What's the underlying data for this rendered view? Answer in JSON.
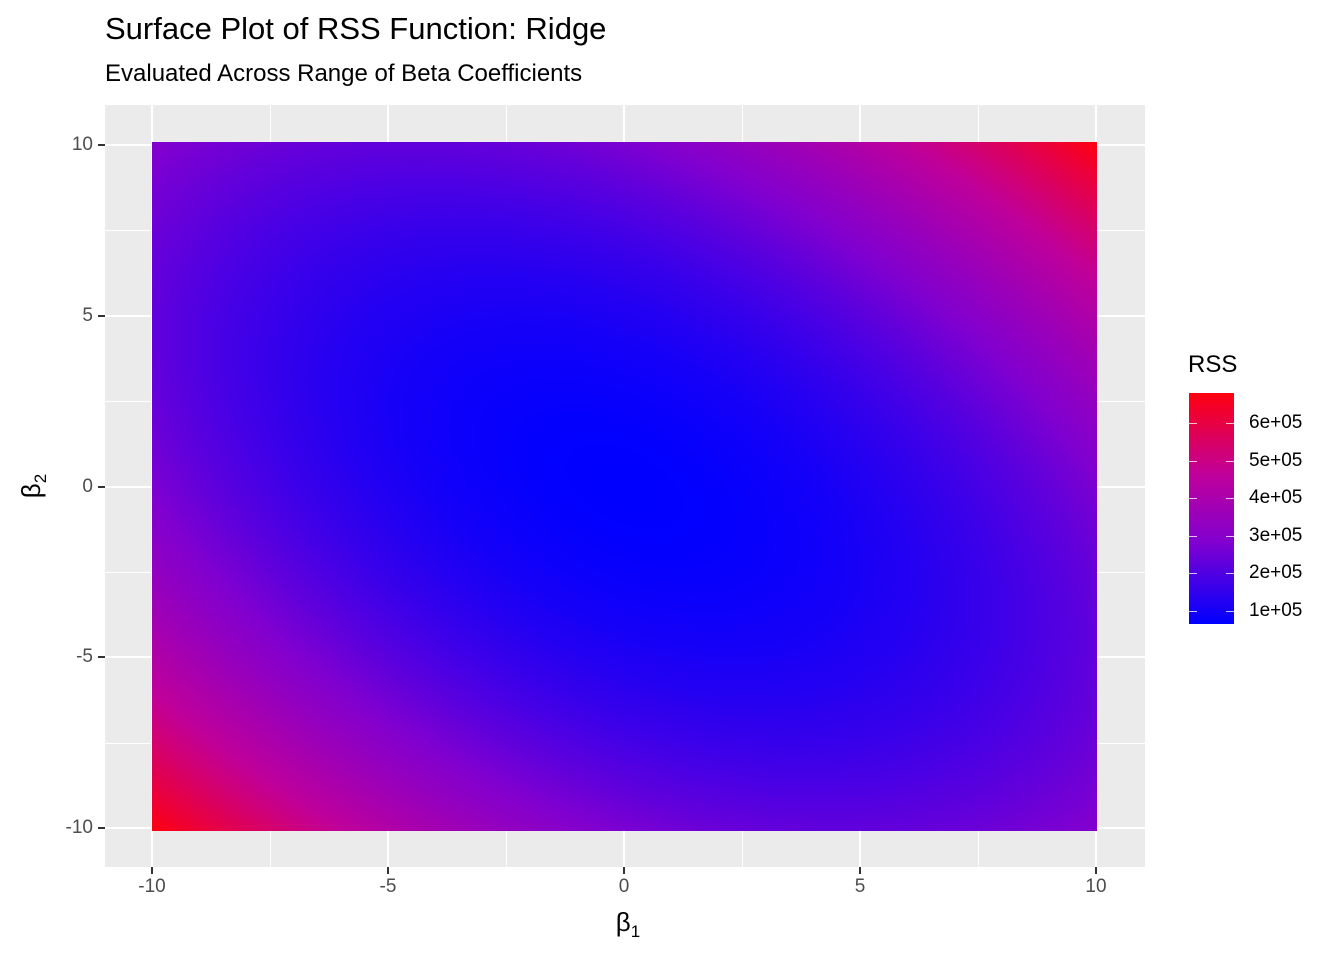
{
  "chart_data": {
    "type": "heatmap",
    "title": "Surface Plot of RSS Function: Ridge",
    "subtitle": "Evaluated Across Range of Beta Coefficients",
    "xlabel": "β",
    "xlabel_sub": "1",
    "ylabel": "β",
    "ylabel_sub": "2",
    "xlim": [
      -10,
      10
    ],
    "ylim": [
      -10,
      10
    ],
    "x_ticks": [
      -10,
      -5,
      0,
      5,
      10
    ],
    "y_ticks": [
      -10,
      -5,
      0,
      5,
      10
    ],
    "x_tick_labels": [
      "-10",
      "-5",
      "0",
      "5",
      "10"
    ],
    "y_tick_labels": [
      "-10",
      "-5",
      "0",
      "5",
      "10"
    ],
    "grid": true,
    "z_min_point": {
      "x": 0,
      "y": 0,
      "z": 65000
    },
    "z_corners": [
      {
        "x": -10,
        "y": -10,
        "z": 680000
      },
      {
        "x": 10,
        "y": 10,
        "z": 680000
      },
      {
        "x": -10,
        "y": 10,
        "z": 290000
      },
      {
        "x": 10,
        "y": -10,
        "z": 290000
      }
    ],
    "legend": {
      "title": "RSS",
      "position": "right",
      "range": [
        65000,
        680000
      ],
      "breaks": [
        100000,
        200000,
        300000,
        400000,
        500000,
        600000
      ],
      "break_labels": [
        "1e+05",
        "2e+05",
        "3e+05",
        "4e+05",
        "5e+05",
        "6e+05"
      ],
      "low_color": "#0000ff",
      "high_color": "#ff0000"
    }
  }
}
